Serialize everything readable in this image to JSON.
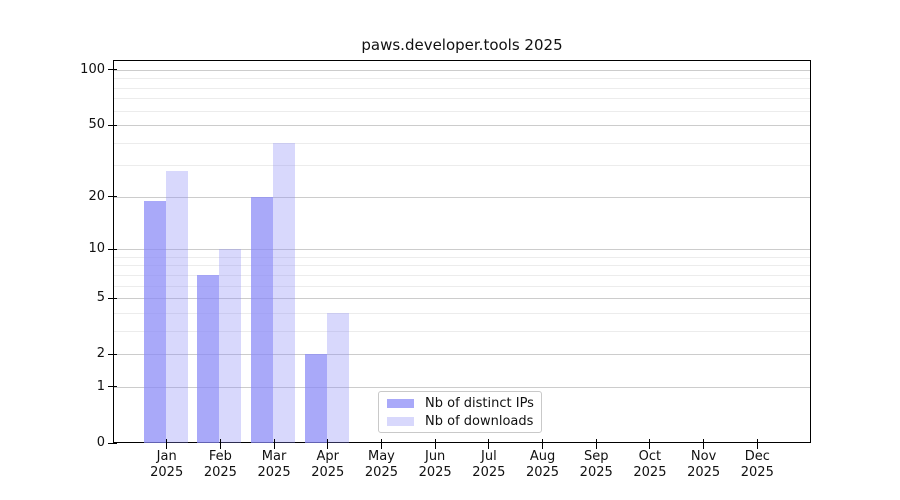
{
  "chart_data": {
    "type": "bar",
    "title": "paws.developer.tools 2025",
    "categories": [
      "Jan 2025",
      "Feb 2025",
      "Mar 2025",
      "Apr 2025",
      "May 2025",
      "Jun 2025",
      "Jul 2025",
      "Aug 2025",
      "Sep 2025",
      "Oct 2025",
      "Nov 2025",
      "Dec 2025"
    ],
    "series": [
      {
        "name": "Nb of distinct IPs",
        "color": "#8888f7",
        "fill_alpha": 0.72,
        "values": [
          19,
          7,
          20,
          2,
          0,
          0,
          0,
          0,
          0,
          0,
          0,
          0
        ]
      },
      {
        "name": "Nb of downloads",
        "color": "#8888f7",
        "fill_alpha": 0.33,
        "values": [
          28,
          10,
          40,
          4,
          0,
          0,
          0,
          0,
          0,
          0,
          0,
          0
        ]
      }
    ],
    "xlabel": "",
    "ylabel": "",
    "y_axis": {
      "scale": "log1p",
      "ticks": [
        0,
        1,
        2,
        5,
        10,
        20,
        50,
        100
      ],
      "minor_ticks": [
        3,
        4,
        6,
        7,
        8,
        9,
        30,
        40,
        60,
        70,
        80,
        90
      ],
      "ylim": [
        0,
        113
      ]
    },
    "grid": "horizontal",
    "legend_position": "lower center",
    "colors": {
      "grid_major": "#cccccc",
      "grid_minor": "#ececec",
      "axis": "#000000",
      "text": "#111111"
    }
  }
}
